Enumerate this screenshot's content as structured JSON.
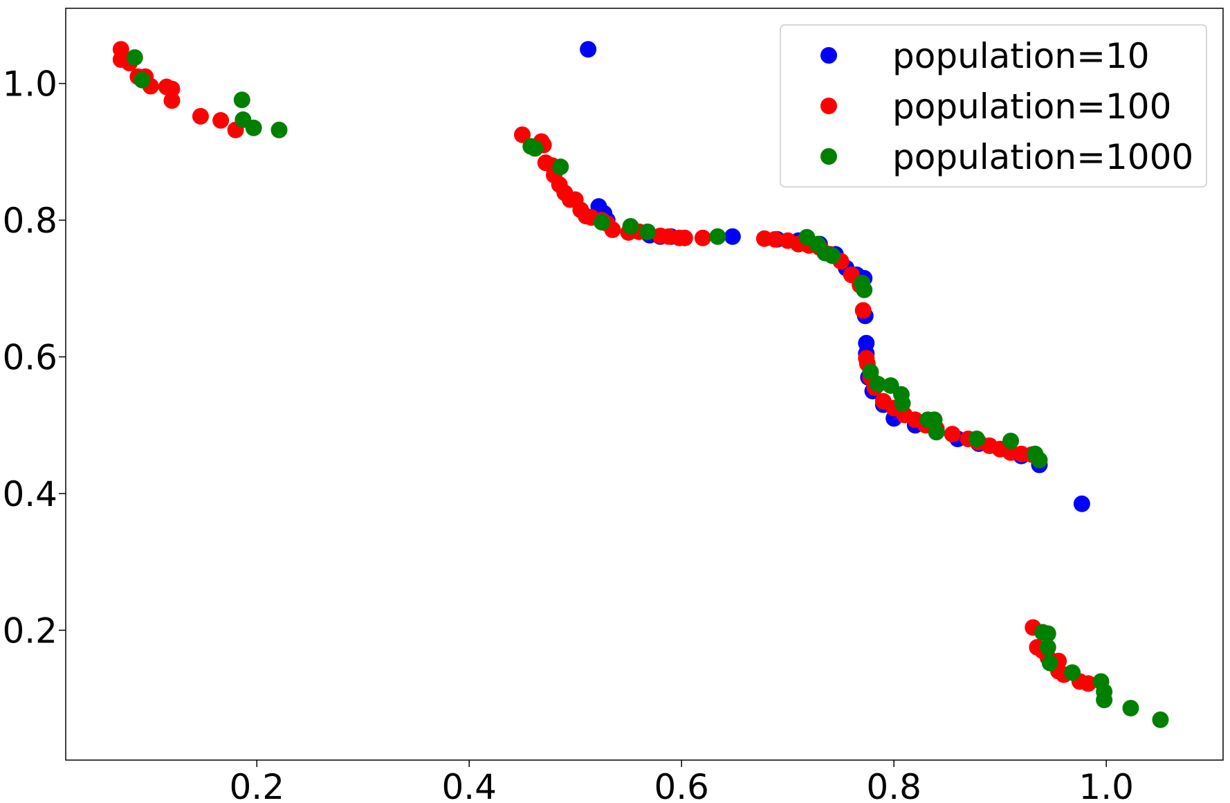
{
  "chart_data": {
    "type": "scatter",
    "title": "",
    "xlabel": "",
    "ylabel": "",
    "xlim": [
      0.02,
      1.11
    ],
    "ylim": [
      0.01,
      1.11
    ],
    "grid": false,
    "legend_position": "top-right",
    "x_ticks": [
      0.2,
      0.4,
      0.6,
      0.8,
      1.0
    ],
    "y_ticks": [
      0.2,
      0.4,
      0.6,
      0.8,
      1.0
    ],
    "x_tick_labels": [
      "0.2",
      "0.4",
      "0.6",
      "0.8",
      "1.0"
    ],
    "y_tick_labels": [
      "0.2",
      "0.4",
      "0.6",
      "0.8",
      "1.0"
    ],
    "series": [
      {
        "name": "population=10",
        "color": "#0000ff",
        "points": [
          [
            0.512,
            1.05
          ],
          [
            0.522,
            0.82
          ],
          [
            0.527,
            0.81
          ],
          [
            0.53,
            0.8
          ],
          [
            0.57,
            0.778
          ],
          [
            0.58,
            0.776
          ],
          [
            0.59,
            0.776
          ],
          [
            0.648,
            0.776
          ],
          [
            0.69,
            0.772
          ],
          [
            0.71,
            0.77
          ],
          [
            0.73,
            0.765
          ],
          [
            0.745,
            0.75
          ],
          [
            0.755,
            0.73
          ],
          [
            0.765,
            0.72
          ],
          [
            0.772,
            0.715
          ],
          [
            0.773,
            0.66
          ],
          [
            0.774,
            0.62
          ],
          [
            0.774,
            0.605
          ],
          [
            0.776,
            0.57
          ],
          [
            0.78,
            0.55
          ],
          [
            0.79,
            0.53
          ],
          [
            0.8,
            0.51
          ],
          [
            0.82,
            0.5
          ],
          [
            0.84,
            0.49
          ],
          [
            0.86,
            0.48
          ],
          [
            0.88,
            0.473
          ],
          [
            0.9,
            0.465
          ],
          [
            0.92,
            0.455
          ],
          [
            0.937,
            0.442
          ],
          [
            0.977,
            0.385
          ]
        ]
      },
      {
        "name": "population=100",
        "color": "#ff0000",
        "points": [
          [
            0.072,
            1.05
          ],
          [
            0.072,
            1.035
          ],
          [
            0.08,
            1.03
          ],
          [
            0.088,
            1.01
          ],
          [
            0.095,
            1.01
          ],
          [
            0.1,
            0.996
          ],
          [
            0.115,
            0.995
          ],
          [
            0.12,
            0.992
          ],
          [
            0.12,
            0.975
          ],
          [
            0.147,
            0.952
          ],
          [
            0.166,
            0.946
          ],
          [
            0.18,
            0.932
          ],
          [
            0.45,
            0.925
          ],
          [
            0.468,
            0.915
          ],
          [
            0.47,
            0.91
          ],
          [
            0.472,
            0.884
          ],
          [
            0.478,
            0.88
          ],
          [
            0.48,
            0.866
          ],
          [
            0.485,
            0.852
          ],
          [
            0.49,
            0.84
          ],
          [
            0.495,
            0.83
          ],
          [
            0.5,
            0.83
          ],
          [
            0.505,
            0.815
          ],
          [
            0.51,
            0.806
          ],
          [
            0.515,
            0.804
          ],
          [
            0.525,
            0.8
          ],
          [
            0.53,
            0.795
          ],
          [
            0.535,
            0.786
          ],
          [
            0.55,
            0.782
          ],
          [
            0.56,
            0.783
          ],
          [
            0.58,
            0.777
          ],
          [
            0.588,
            0.776
          ],
          [
            0.598,
            0.774
          ],
          [
            0.603,
            0.774
          ],
          [
            0.62,
            0.774
          ],
          [
            0.678,
            0.773
          ],
          [
            0.688,
            0.772
          ],
          [
            0.7,
            0.77
          ],
          [
            0.71,
            0.765
          ],
          [
            0.72,
            0.763
          ],
          [
            0.73,
            0.76
          ],
          [
            0.74,
            0.75
          ],
          [
            0.75,
            0.74
          ],
          [
            0.76,
            0.72
          ],
          [
            0.768,
            0.705
          ],
          [
            0.771,
            0.668
          ],
          [
            0.774,
            0.598
          ],
          [
            0.775,
            0.59
          ],
          [
            0.778,
            0.57
          ],
          [
            0.782,
            0.555
          ],
          [
            0.79,
            0.535
          ],
          [
            0.8,
            0.525
          ],
          [
            0.81,
            0.515
          ],
          [
            0.82,
            0.508
          ],
          [
            0.83,
            0.5
          ],
          [
            0.84,
            0.495
          ],
          [
            0.855,
            0.487
          ],
          [
            0.87,
            0.48
          ],
          [
            0.88,
            0.475
          ],
          [
            0.89,
            0.47
          ],
          [
            0.9,
            0.465
          ],
          [
            0.91,
            0.46
          ],
          [
            0.92,
            0.458
          ],
          [
            0.93,
            0.457
          ],
          [
            0.931,
            0.204
          ],
          [
            0.935,
            0.175
          ],
          [
            0.94,
            0.17
          ],
          [
            0.945,
            0.16
          ],
          [
            0.955,
            0.155
          ],
          [
            0.955,
            0.14
          ],
          [
            0.96,
            0.135
          ],
          [
            0.975,
            0.125
          ],
          [
            0.983,
            0.122
          ]
        ]
      },
      {
        "name": "population=1000",
        "color": "#008000",
        "points": [
          [
            0.085,
            1.038
          ],
          [
            0.092,
            1.005
          ],
          [
            0.186,
            0.976
          ],
          [
            0.187,
            0.947
          ],
          [
            0.197,
            0.935
          ],
          [
            0.221,
            0.932
          ],
          [
            0.458,
            0.908
          ],
          [
            0.462,
            0.905
          ],
          [
            0.486,
            0.878
          ],
          [
            0.525,
            0.797
          ],
          [
            0.552,
            0.791
          ],
          [
            0.568,
            0.783
          ],
          [
            0.634,
            0.776
          ],
          [
            0.718,
            0.775
          ],
          [
            0.728,
            0.765
          ],
          [
            0.735,
            0.752
          ],
          [
            0.742,
            0.748
          ],
          [
            0.77,
            0.708
          ],
          [
            0.772,
            0.698
          ],
          [
            0.778,
            0.578
          ],
          [
            0.785,
            0.56
          ],
          [
            0.797,
            0.558
          ],
          [
            0.807,
            0.545
          ],
          [
            0.808,
            0.532
          ],
          [
            0.832,
            0.508
          ],
          [
            0.838,
            0.508
          ],
          [
            0.84,
            0.49
          ],
          [
            0.878,
            0.48
          ],
          [
            0.91,
            0.477
          ],
          [
            0.933,
            0.458
          ],
          [
            0.937,
            0.449
          ],
          [
            0.94,
            0.197
          ],
          [
            0.945,
            0.195
          ],
          [
            0.945,
            0.175
          ],
          [
            0.947,
            0.152
          ],
          [
            0.968,
            0.138
          ],
          [
            0.995,
            0.125
          ],
          [
            0.998,
            0.11
          ],
          [
            0.998,
            0.098
          ],
          [
            1.023,
            0.086
          ],
          [
            1.051,
            0.069
          ]
        ]
      }
    ]
  }
}
